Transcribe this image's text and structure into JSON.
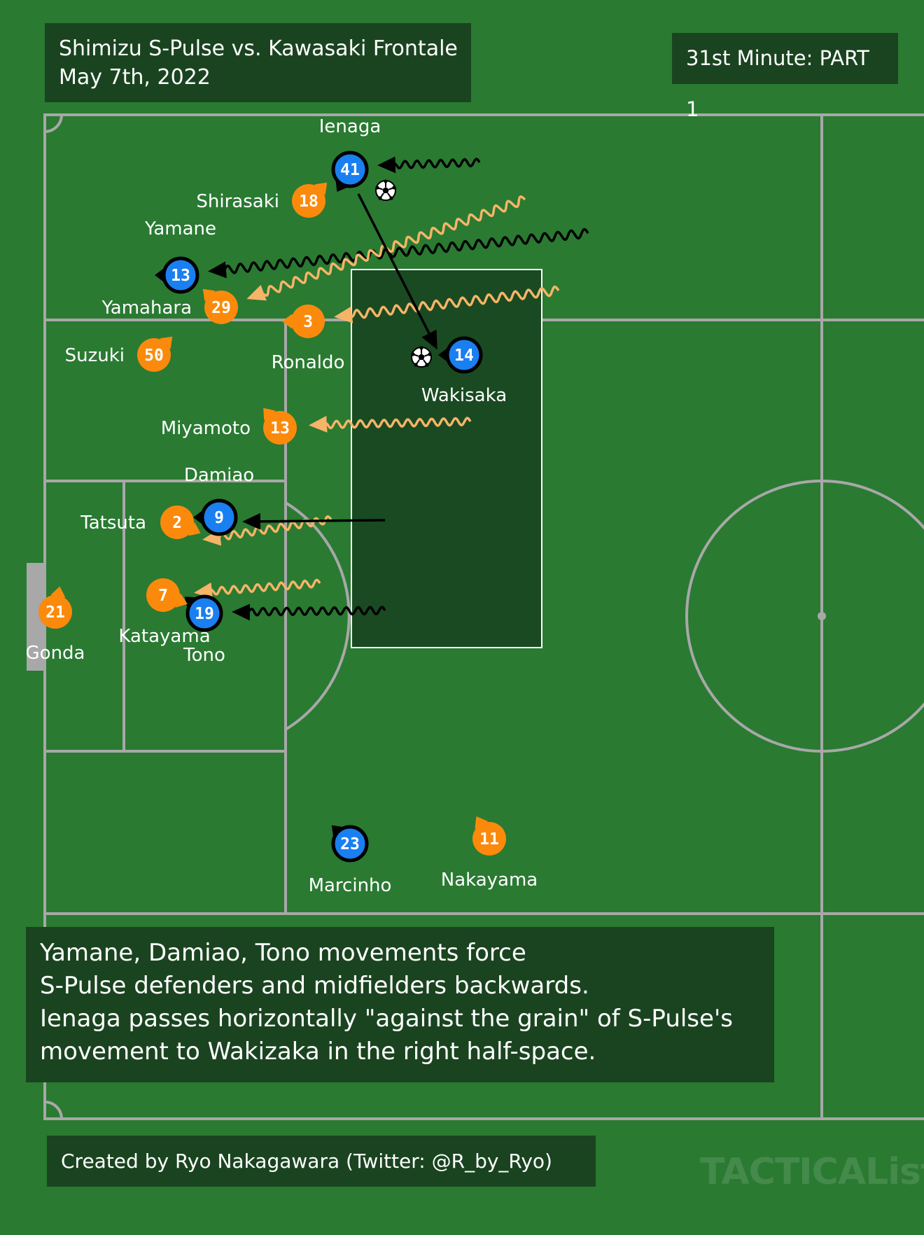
{
  "header": {
    "title_line1": "Shimizu S-Pulse vs. Kawasaki Frontale",
    "title_line2": "May 7th, 2022",
    "minute": "31st Minute: PART 1"
  },
  "caption": {
    "lines": [
      "Yamane, Damiao, Tono movements force",
      "S-Pulse defenders and midfielders backwards.",
      "Ienaga passes horizontally \"against the grain\" of S-Pulse's",
      "movement to Wakizaka in the right half-space."
    ]
  },
  "credit": "Created by Ryo Nakagawara (Twitter: @R_by_Ryo)",
  "watermark": "TACTICALista",
  "colors": {
    "pitch": "#2a7a32",
    "lines": "#a8a8a8",
    "panel": "#1a4420",
    "kawasaki": "#1a7ff0",
    "shimizu": "#fb8a0c",
    "run_kawasaki": "#000000",
    "run_shimizu": "#f6b468",
    "highlight_zone": "#1a4a22"
  },
  "players": [
    {
      "team": "kawasaki",
      "number": "41",
      "name": "Ienaga"
    },
    {
      "team": "kawasaki",
      "number": "13",
      "name": "Yamane"
    },
    {
      "team": "kawasaki",
      "number": "14",
      "name": "Wakisaka"
    },
    {
      "team": "kawasaki",
      "number": "9",
      "name": "Damiao"
    },
    {
      "team": "kawasaki",
      "number": "19",
      "name": "Tono"
    },
    {
      "team": "kawasaki",
      "number": "23",
      "name": "Marcinho"
    },
    {
      "team": "shimizu",
      "number": "18",
      "name": "Shirasaki"
    },
    {
      "team": "shimizu",
      "number": "29",
      "name": "Yamahara"
    },
    {
      "team": "shimizu",
      "number": "3",
      "name": "Ronaldo"
    },
    {
      "team": "shimizu",
      "number": "50",
      "name": "Suzuki"
    },
    {
      "team": "shimizu",
      "number": "13",
      "name": "Miyamoto"
    },
    {
      "team": "shimizu",
      "number": "2",
      "name": "Tatsuta"
    },
    {
      "team": "shimizu",
      "number": "7",
      "name": "Katayama"
    },
    {
      "team": "shimizu",
      "number": "21",
      "name": "Gonda"
    },
    {
      "team": "shimizu",
      "number": "11",
      "name": "Nakayama"
    }
  ],
  "ball_icon": "soccer-ball-icon"
}
